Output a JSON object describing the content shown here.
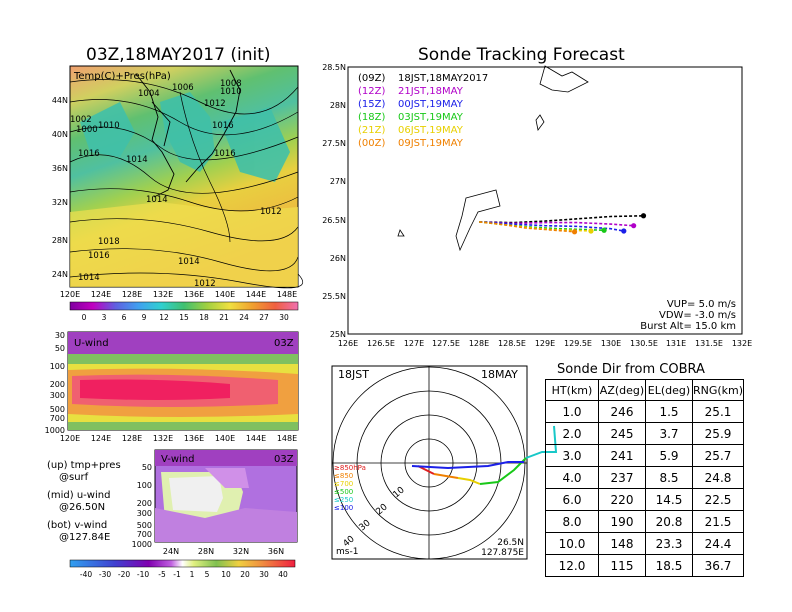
{
  "map_panel": {
    "title": "03Z,18MAY2017 (init)",
    "label": "Temp(C)+Pres(hPa)",
    "lat_ticks": [
      "44N",
      "40N",
      "36N",
      "32N",
      "28N",
      "24N"
    ],
    "lon_ticks": [
      "120E",
      "124E",
      "128E",
      "132E",
      "136E",
      "140E",
      "144E",
      "148E"
    ],
    "isobar_labels": [
      "1004",
      "1006",
      "1008",
      "1010",
      "1002",
      "1000",
      "1010",
      "1012",
      "1016",
      "1014",
      "1016",
      "1016",
      "1014",
      "1012",
      "1018",
      "1016",
      "1014",
      "1014",
      "1012"
    ],
    "colorbar_ticks": [
      "0",
      "3",
      "6",
      "9",
      "12",
      "15",
      "18",
      "21",
      "24",
      "27",
      "30"
    ]
  },
  "u_panel": {
    "label": "U-wind",
    "time": "03Z",
    "p_ticks": [
      "30",
      "50",
      "100",
      "200",
      "300",
      "500",
      "700",
      "1000"
    ],
    "lon_ticks": [
      "120E",
      "124E",
      "128E",
      "132E",
      "136E",
      "140E",
      "144E",
      "148E"
    ]
  },
  "v_panel": {
    "label": "V-wind",
    "time": "03Z",
    "p_ticks": [
      "50",
      "100",
      "200",
      "300",
      "500",
      "700",
      "1000"
    ],
    "lat_ticks": [
      "24N",
      "28N",
      "32N",
      "36N"
    ],
    "colorbar_ticks": [
      "-40",
      "-30",
      "-20",
      "-10",
      "-5",
      "-1",
      "1",
      "5",
      "10",
      "20",
      "30",
      "40"
    ]
  },
  "notes": {
    "line1": "(up) tmp+pres",
    "line2": "@surf",
    "line3": "(mid) u-wind",
    "line4": "@26.50N",
    "line5": "(bot) v-wind",
    "line6": "@127.84E"
  },
  "tracking": {
    "title": "Sonde Tracking Forecast",
    "lat_ticks": [
      "28.5N",
      "28N",
      "27.5N",
      "27N",
      "26.5N",
      "26N",
      "25.5N",
      "25N"
    ],
    "lon_ticks": [
      "126E",
      "126.5E",
      "127E",
      "127.5E",
      "128E",
      "128.5E",
      "129E",
      "129.5E",
      "130E",
      "130.5E",
      "131E",
      "131.5E",
      "132E"
    ],
    "legend": [
      {
        "run": "(09Z)",
        "time": "18JST,18MAY2017",
        "color": "#000000"
      },
      {
        "run": "(12Z)",
        "time": "21JST,18MAY",
        "color": "#b000c8"
      },
      {
        "run": "(15Z)",
        "time": "00JST,19MAY",
        "color": "#1c20e8"
      },
      {
        "run": "(18Z)",
        "time": "03JST,19MAY",
        "color": "#18c818"
      },
      {
        "run": "(21Z)",
        "time": "06JST,19MAY",
        "color": "#e8d000"
      },
      {
        "run": "(00Z)",
        "time": "09JST,19MAY",
        "color": "#f08000"
      }
    ],
    "params": [
      "VUP= 5.0 m/s",
      "VDW= -3.0 m/s",
      "Burst Alt= 15.0 km"
    ]
  },
  "hodograph": {
    "time_label": "18JST",
    "date_label": "18MAY",
    "ring_labels": [
      "10",
      "20",
      "30",
      "40"
    ],
    "levels": [
      {
        "label": "≥850hPa",
        "color": "#e02020"
      },
      {
        "label": "≤850",
        "color": "#f08000"
      },
      {
        "label": "≤700",
        "color": "#e8d000"
      },
      {
        "label": "≤500",
        "color": "#18c818"
      },
      {
        "label": "≤250",
        "color": "#18c8c8"
      },
      {
        "label": "≤100",
        "color": "#1c20e8"
      }
    ],
    "unit": "ms-1",
    "loc_lat": "26.5N",
    "loc_lon": "127.875E"
  },
  "cobra": {
    "title": "Sonde Dir from COBRA",
    "headers": [
      "HT(km)",
      "AZ(deg)",
      "EL(deg)",
      "RNG(km)"
    ],
    "rows": [
      [
        "1.0",
        "246",
        "1.5",
        "25.1"
      ],
      [
        "2.0",
        "245",
        "3.7",
        "25.9"
      ],
      [
        "3.0",
        "241",
        "5.9",
        "25.7"
      ],
      [
        "4.0",
        "237",
        "8.5",
        "24.8"
      ],
      [
        "6.0",
        "220",
        "14.5",
        "22.5"
      ],
      [
        "8.0",
        "190",
        "20.8",
        "21.5"
      ],
      [
        "10.0",
        "148",
        "23.3",
        "24.4"
      ],
      [
        "12.0",
        "115",
        "18.5",
        "36.7"
      ]
    ]
  },
  "chart_data": [
    {
      "type": "line",
      "title": "Sonde Tracking Forecast",
      "xlim": [
        126,
        132
      ],
      "ylim": [
        25,
        28.5
      ],
      "series": [
        {
          "name": "(09Z) 18JST,18MAY2017",
          "x": [
            128.0,
            128.5,
            129.0,
            129.5,
            130.0,
            130.5
          ],
          "y": [
            26.47,
            26.46,
            26.48,
            26.51,
            26.54,
            26.55
          ]
        },
        {
          "name": "(12Z) 21JST,18MAY",
          "x": [
            128.0,
            128.5,
            129.0,
            129.5,
            130.0,
            130.35
          ],
          "y": [
            26.47,
            26.45,
            26.46,
            26.46,
            26.44,
            26.42
          ]
        },
        {
          "name": "(15Z) 00JST,19MAY",
          "x": [
            128.0,
            128.5,
            129.0,
            129.5,
            130.0,
            130.2
          ],
          "y": [
            26.47,
            26.44,
            26.42,
            26.41,
            26.38,
            26.35
          ]
        },
        {
          "name": "(18Z) 03JST,19MAY",
          "x": [
            128.0,
            128.4,
            128.8,
            129.2,
            129.6,
            129.9
          ],
          "y": [
            26.47,
            26.43,
            26.4,
            26.38,
            26.37,
            26.36
          ]
        },
        {
          "name": "(21Z) 06JST,19MAY",
          "x": [
            128.0,
            128.4,
            128.8,
            129.1,
            129.4,
            129.7
          ],
          "y": [
            26.47,
            26.43,
            26.39,
            26.37,
            26.36,
            26.35
          ]
        },
        {
          "name": "(00Z) 09JST,19MAY",
          "x": [
            128.0,
            128.4,
            128.7,
            129.0,
            129.3,
            129.45
          ],
          "y": [
            26.47,
            26.43,
            26.39,
            26.37,
            26.35,
            26.34
          ]
        }
      ]
    },
    {
      "type": "table",
      "title": "Sonde Dir from COBRA",
      "columns": [
        "HT(km)",
        "AZ(deg)",
        "EL(deg)",
        "RNG(km)"
      ],
      "rows": [
        [
          1.0,
          246,
          1.5,
          25.1
        ],
        [
          2.0,
          245,
          3.7,
          25.9
        ],
        [
          3.0,
          241,
          5.9,
          25.7
        ],
        [
          4.0,
          237,
          8.5,
          24.8
        ],
        [
          6.0,
          220,
          14.5,
          22.5
        ],
        [
          8.0,
          190,
          20.8,
          21.5
        ],
        [
          10.0,
          148,
          23.3,
          24.4
        ],
        [
          12.0,
          115,
          18.5,
          36.7
        ]
      ]
    }
  ]
}
